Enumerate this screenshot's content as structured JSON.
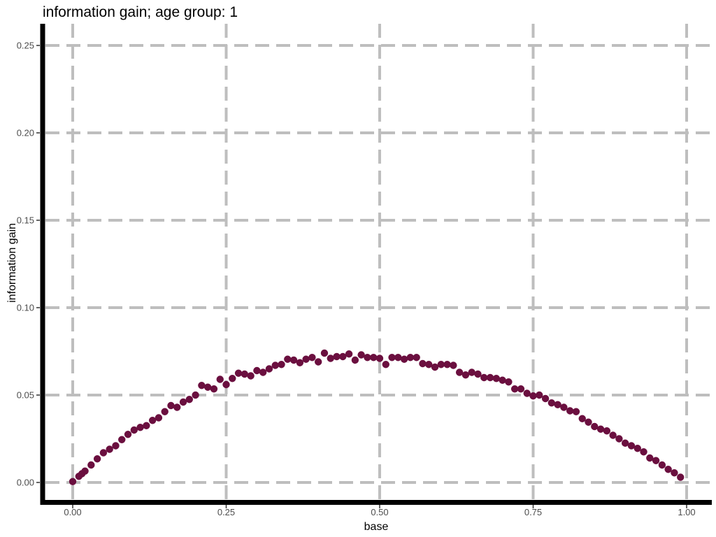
{
  "chart_data": {
    "type": "scatter",
    "title": "information gain; age group: 1",
    "xlabel": "base",
    "ylabel": "information gain",
    "xlim": [
      0,
      1
    ],
    "ylim": [
      0,
      0.25
    ],
    "x_ticks": [
      {
        "value": 0.0,
        "label": "0.00"
      },
      {
        "value": 0.25,
        "label": "0.25"
      },
      {
        "value": 0.5,
        "label": "0.50"
      },
      {
        "value": 0.75,
        "label": "0.75"
      },
      {
        "value": 1.0,
        "label": "1.00"
      }
    ],
    "y_ticks": [
      {
        "value": 0.0,
        "label": "0.00"
      },
      {
        "value": 0.05,
        "label": "0.05"
      },
      {
        "value": 0.1,
        "label": "0.10"
      },
      {
        "value": 0.15,
        "label": "0.15"
      },
      {
        "value": 0.2,
        "label": "0.20"
      },
      {
        "value": 0.25,
        "label": "0.25"
      }
    ],
    "grid": true,
    "point_color": "#6b0f3f",
    "series": [
      {
        "points": [
          [
            0.0,
            0.0005
          ],
          [
            0.01,
            0.0035
          ],
          [
            0.015,
            0.005
          ],
          [
            0.02,
            0.0065
          ],
          [
            0.03,
            0.01
          ],
          [
            0.04,
            0.0135
          ],
          [
            0.05,
            0.017
          ],
          [
            0.06,
            0.019
          ],
          [
            0.07,
            0.021
          ],
          [
            0.08,
            0.0245
          ],
          [
            0.09,
            0.0275
          ],
          [
            0.1,
            0.03
          ],
          [
            0.11,
            0.0315
          ],
          [
            0.12,
            0.0325
          ],
          [
            0.13,
            0.0355
          ],
          [
            0.14,
            0.037
          ],
          [
            0.15,
            0.0405
          ],
          [
            0.16,
            0.044
          ],
          [
            0.17,
            0.043
          ],
          [
            0.18,
            0.046
          ],
          [
            0.19,
            0.0475
          ],
          [
            0.2,
            0.05
          ],
          [
            0.21,
            0.0555
          ],
          [
            0.22,
            0.0545
          ],
          [
            0.23,
            0.0535
          ],
          [
            0.24,
            0.059
          ],
          [
            0.25,
            0.056
          ],
          [
            0.26,
            0.0595
          ],
          [
            0.27,
            0.0625
          ],
          [
            0.28,
            0.062
          ],
          [
            0.29,
            0.061
          ],
          [
            0.3,
            0.064
          ],
          [
            0.31,
            0.063
          ],
          [
            0.32,
            0.065
          ],
          [
            0.33,
            0.067
          ],
          [
            0.34,
            0.0675
          ],
          [
            0.35,
            0.0705
          ],
          [
            0.36,
            0.07
          ],
          [
            0.37,
            0.0685
          ],
          [
            0.38,
            0.0705
          ],
          [
            0.39,
            0.0715
          ],
          [
            0.4,
            0.069
          ],
          [
            0.41,
            0.074
          ],
          [
            0.42,
            0.071
          ],
          [
            0.43,
            0.072
          ],
          [
            0.44,
            0.072
          ],
          [
            0.45,
            0.0735
          ],
          [
            0.46,
            0.07
          ],
          [
            0.47,
            0.073
          ],
          [
            0.48,
            0.0715
          ],
          [
            0.49,
            0.0715
          ],
          [
            0.5,
            0.071
          ],
          [
            0.51,
            0.0675
          ],
          [
            0.52,
            0.0715
          ],
          [
            0.53,
            0.0715
          ],
          [
            0.54,
            0.0705
          ],
          [
            0.55,
            0.0715
          ],
          [
            0.56,
            0.0715
          ],
          [
            0.57,
            0.068
          ],
          [
            0.58,
            0.0675
          ],
          [
            0.59,
            0.066
          ],
          [
            0.6,
            0.0675
          ],
          [
            0.61,
            0.0675
          ],
          [
            0.62,
            0.067
          ],
          [
            0.63,
            0.063
          ],
          [
            0.64,
            0.0615
          ],
          [
            0.65,
            0.063
          ],
          [
            0.66,
            0.062
          ],
          [
            0.67,
            0.06
          ],
          [
            0.68,
            0.06
          ],
          [
            0.69,
            0.0595
          ],
          [
            0.7,
            0.0585
          ],
          [
            0.71,
            0.0575
          ],
          [
            0.72,
            0.0535
          ],
          [
            0.73,
            0.0535
          ],
          [
            0.74,
            0.051
          ],
          [
            0.75,
            0.0495
          ],
          [
            0.76,
            0.05
          ],
          [
            0.77,
            0.048
          ],
          [
            0.78,
            0.0455
          ],
          [
            0.79,
            0.0445
          ],
          [
            0.8,
            0.043
          ],
          [
            0.81,
            0.041
          ],
          [
            0.82,
            0.0405
          ],
          [
            0.83,
            0.0365
          ],
          [
            0.84,
            0.0345
          ],
          [
            0.85,
            0.032
          ],
          [
            0.86,
            0.0305
          ],
          [
            0.87,
            0.0295
          ],
          [
            0.88,
            0.027
          ],
          [
            0.89,
            0.025
          ],
          [
            0.9,
            0.0225
          ],
          [
            0.91,
            0.021
          ],
          [
            0.92,
            0.0195
          ],
          [
            0.93,
            0.0175
          ],
          [
            0.94,
            0.014
          ],
          [
            0.95,
            0.0125
          ],
          [
            0.96,
            0.01
          ],
          [
            0.97,
            0.0075
          ],
          [
            0.98,
            0.0055
          ],
          [
            0.99,
            0.003
          ]
        ]
      }
    ]
  }
}
